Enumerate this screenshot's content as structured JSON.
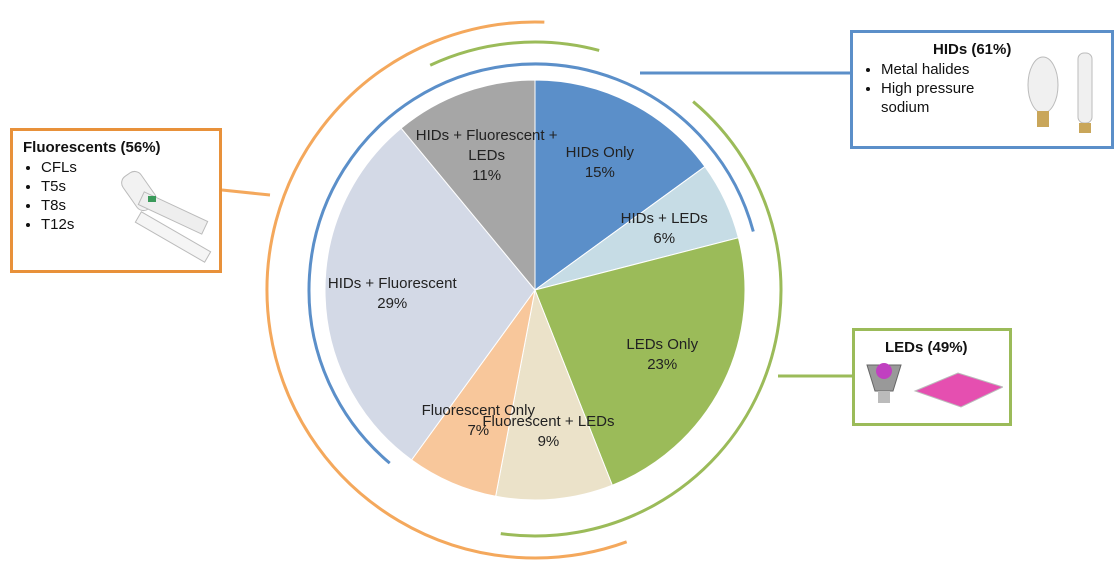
{
  "chart_data": {
    "type": "pie",
    "categories": [
      "HIDs Only",
      "HIDs + LEDs",
      "LEDs Only",
      "Fluorescent + LEDs",
      "Fluorescent Only",
      "HIDs + Fluorescent",
      "HIDs + Fluorescent + LEDs"
    ],
    "values": [
      15,
      6,
      23,
      9,
      7,
      29,
      11
    ],
    "value_labels": [
      "15%",
      "6%",
      "23%",
      "9%",
      "7%",
      "29%",
      "11%"
    ],
    "colors": [
      "#5b8fc9",
      "#c6dce5",
      "#9bbb59",
      "#ebe2c9",
      "#f8c79b",
      "#d3d9e6",
      "#a6a6a6"
    ]
  },
  "groups": [
    {
      "title": "Fluorescents (56%)",
      "items": [
        "CFLs",
        "T5s",
        "T8s",
        "T12s"
      ]
    },
    {
      "title": "HIDs (61%)",
      "items": [
        "Metal halides",
        "High pressure sodium"
      ]
    },
    {
      "title": "LEDs (49%)",
      "items": []
    }
  ]
}
